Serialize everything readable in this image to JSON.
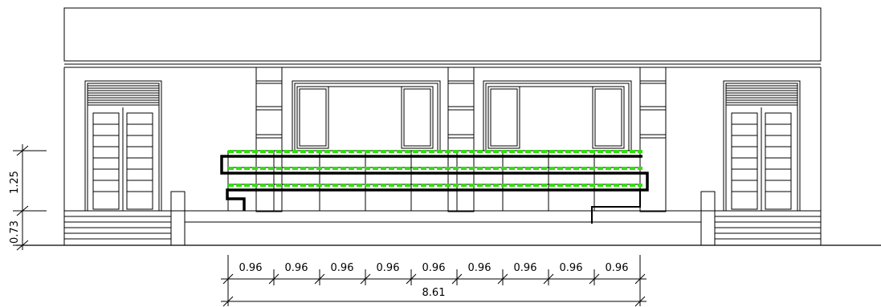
{
  "elevation": {
    "vertical_dimensions": [
      {
        "label": "1.25"
      },
      {
        "label": "0.73"
      }
    ],
    "bay_dimensions": [
      "0.96",
      "0.96",
      "0.96",
      "0.96",
      "0.96",
      "0.96",
      "0.96",
      "0.96",
      "0.96"
    ],
    "total_width": "8.61"
  },
  "colors": {
    "line": "#000000",
    "plants": "#33dd11",
    "pipe": "#000000"
  }
}
